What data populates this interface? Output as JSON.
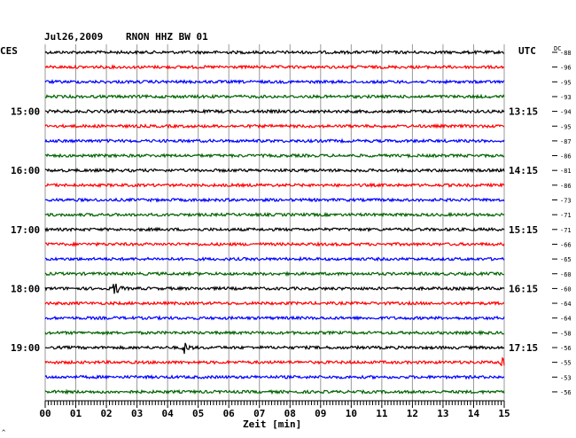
{
  "header": {
    "date": "Jul26,2009",
    "station": "RNON HHZ BW 01",
    "left_zone": "CES",
    "right_zone": "UTC",
    "dc_label": "DC"
  },
  "chart_data": {
    "type": "line",
    "title": "Jul26,2009   RNON HHZ BW 01",
    "xlabel": "Zeit [min]",
    "xlim": [
      0,
      15
    ],
    "x_ticks": [
      "00",
      "01",
      "02",
      "03",
      "04",
      "05",
      "06",
      "07",
      "08",
      "09",
      "10",
      "11",
      "12",
      "13",
      "14",
      "15"
    ],
    "trace_colors": [
      "#000000",
      "#ff0000",
      "#0000ff",
      "#006400"
    ],
    "traces_count": 24,
    "left_hour_labels": [
      {
        "trace": 4,
        "label": "15:00"
      },
      {
        "trace": 8,
        "label": "16:00"
      },
      {
        "trace": 12,
        "label": "17:00"
      },
      {
        "trace": 16,
        "label": "18:00"
      },
      {
        "trace": 20,
        "label": "19:00"
      }
    ],
    "right_hour_labels": [
      {
        "trace": 4,
        "label": "13:15"
      },
      {
        "trace": 8,
        "label": "14:15"
      },
      {
        "trace": 12,
        "label": "15:15"
      },
      {
        "trace": 16,
        "label": "16:15"
      },
      {
        "trace": 20,
        "label": "17:15"
      }
    ],
    "dc_offsets": [
      -88,
      -96,
      -95,
      -93,
      -94,
      -95,
      -87,
      -86,
      -81,
      -86,
      -73,
      -71,
      -71,
      -66,
      -65,
      -60,
      -60,
      -64,
      -64,
      -58,
      -56,
      -55,
      -53,
      -56
    ],
    "events": [
      {
        "trace": 16,
        "minute": 2.25
      },
      {
        "trace": 20,
        "minute": 4.5
      },
      {
        "trace": 21,
        "minute": 14.9
      }
    ],
    "grid": true
  }
}
